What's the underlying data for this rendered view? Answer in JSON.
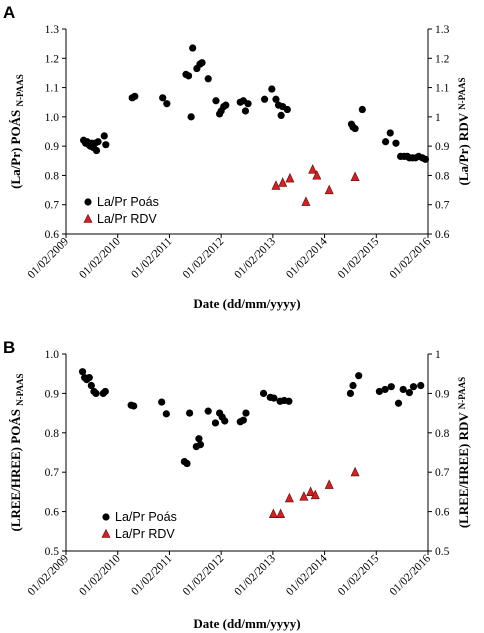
{
  "chart_data": [
    {
      "panel": "A",
      "type": "scatter",
      "xlabel": "Date (dd/mm/yyyy)",
      "ylabel_left": "(La/Pr)",
      "ylabel_left_name": "POÁS",
      "ylabel_left_sub": "N-PAAS",
      "ylabel_right": "(La/Pr)",
      "ylabel_right_name": "RDV",
      "ylabel_right_sub": "N-PAAS",
      "x_ticks": [
        "01/02/2009",
        "01/02/2010",
        "01/02/2011",
        "01/02/2012",
        "01/02/2013",
        "01/02/2014",
        "01/02/2015",
        "01/02/2016"
      ],
      "xlim": [
        2009.08,
        2016.08
      ],
      "ylim": [
        0.6,
        1.3
      ],
      "y_ticks": [
        0.6,
        0.7,
        0.8,
        0.9,
        1.0,
        1.1,
        1.2,
        1.3
      ],
      "y_ticks_left": [
        "0.6",
        "0.7",
        "0.8",
        "0.9",
        "1.0",
        "1.1",
        "1.2",
        "1.3"
      ],
      "y_ticks_right": [
        "0.6",
        "0.7",
        "0.8",
        "0.9",
        "1",
        "1.1",
        "1.2",
        "1.3"
      ],
      "legend_position": "bottom-left",
      "series": [
        {
          "name": "La/Pr Poás",
          "marker": "circle",
          "color": "#000000",
          "points": [
            [
              2009.42,
              0.92
            ],
            [
              2009.46,
              0.91
            ],
            [
              2009.49,
              0.915
            ],
            [
              2009.52,
              0.905
            ],
            [
              2009.55,
              0.9
            ],
            [
              2009.58,
              0.91
            ],
            [
              2009.61,
              0.895
            ],
            [
              2009.64,
              0.91
            ],
            [
              2009.67,
              0.885
            ],
            [
              2009.7,
              0.915
            ],
            [
              2009.82,
              0.935
            ],
            [
              2009.85,
              0.905
            ],
            [
              2010.36,
              1.065
            ],
            [
              2010.41,
              1.07
            ],
            [
              2010.95,
              1.065
            ],
            [
              2011.03,
              1.045
            ],
            [
              2011.4,
              1.145
            ],
            [
              2011.45,
              1.14
            ],
            [
              2011.5,
              1.0
            ],
            [
              2011.53,
              1.235
            ],
            [
              2011.61,
              1.165
            ],
            [
              2011.67,
              1.18
            ],
            [
              2011.71,
              1.185
            ],
            [
              2011.83,
              1.13
            ],
            [
              2011.98,
              1.055
            ],
            [
              2012.05,
              1.01
            ],
            [
              2012.08,
              1.02
            ],
            [
              2012.13,
              1.035
            ],
            [
              2012.17,
              1.04
            ],
            [
              2012.45,
              1.05
            ],
            [
              2012.51,
              1.055
            ],
            [
              2012.55,
              1.02
            ],
            [
              2012.6,
              1.045
            ],
            [
              2012.92,
              1.06
            ],
            [
              2013.06,
              1.095
            ],
            [
              2013.14,
              1.06
            ],
            [
              2013.19,
              1.04
            ],
            [
              2013.24,
              1.005
            ],
            [
              2013.27,
              1.035
            ],
            [
              2013.36,
              1.025
            ],
            [
              2014.6,
              0.975
            ],
            [
              2014.63,
              0.965
            ],
            [
              2014.67,
              0.96
            ],
            [
              2014.81,
              1.025
            ],
            [
              2015.26,
              0.915
            ],
            [
              2015.35,
              0.945
            ],
            [
              2015.46,
              0.91
            ],
            [
              2015.55,
              0.865
            ],
            [
              2015.62,
              0.865
            ],
            [
              2015.68,
              0.865
            ],
            [
              2015.72,
              0.86
            ],
            [
              2015.78,
              0.86
            ],
            [
              2015.84,
              0.86
            ],
            [
              2015.9,
              0.865
            ],
            [
              2015.97,
              0.86
            ],
            [
              2016.03,
              0.855
            ]
          ]
        },
        {
          "name": "La/Pr RDV",
          "marker": "triangle",
          "color": "#d42020",
          "points": [
            [
              2013.14,
              0.765
            ],
            [
              2013.27,
              0.775
            ],
            [
              2013.41,
              0.79
            ],
            [
              2013.72,
              0.71
            ],
            [
              2013.85,
              0.82
            ],
            [
              2013.93,
              0.8
            ],
            [
              2014.17,
              0.75
            ],
            [
              2014.67,
              0.795
            ]
          ]
        }
      ]
    },
    {
      "panel": "B",
      "type": "scatter",
      "xlabel": "Date (dd/mm/yyyy)",
      "ylabel_left": "(LREE/HREE)",
      "ylabel_left_name": "POÁS",
      "ylabel_left_sub": "N-PAAS",
      "ylabel_right": "(LREE/HREE)",
      "ylabel_right_name": "RDV",
      "ylabel_right_sub": "N-PAAS",
      "x_ticks": [
        "01/02/2009",
        "01/02/2010",
        "01/02/2011",
        "01/02/2012",
        "01/02/2013",
        "01/02/2014",
        "01/02/2015",
        "01/02/2016"
      ],
      "xlim": [
        2009.08,
        2016.08
      ],
      "ylim": [
        0.5,
        1.0
      ],
      "y_ticks": [
        0.5,
        0.6,
        0.7,
        0.8,
        0.9,
        1.0
      ],
      "y_ticks_left": [
        "0.5",
        "0.6",
        "0.7",
        "0.8",
        "0.9",
        "1.0"
      ],
      "y_ticks_right": [
        "0.5",
        "0.6",
        "0.7",
        "0.8",
        "0.9",
        "1"
      ],
      "legend_position": "bottom-left",
      "series": [
        {
          "name": "La/Pr Poás",
          "marker": "circle",
          "color": "#000000",
          "points": [
            [
              2009.4,
              0.955
            ],
            [
              2009.44,
              0.94
            ],
            [
              2009.48,
              0.935
            ],
            [
              2009.53,
              0.94
            ],
            [
              2009.57,
              0.92
            ],
            [
              2009.62,
              0.905
            ],
            [
              2009.66,
              0.9
            ],
            [
              2009.8,
              0.9
            ],
            [
              2009.84,
              0.905
            ],
            [
              2010.34,
              0.87
            ],
            [
              2010.39,
              0.868
            ],
            [
              2010.93,
              0.878
            ],
            [
              2011.02,
              0.848
            ],
            [
              2011.37,
              0.727
            ],
            [
              2011.42,
              0.722
            ],
            [
              2011.47,
              0.85
            ],
            [
              2011.6,
              0.765
            ],
            [
              2011.65,
              0.785
            ],
            [
              2011.68,
              0.77
            ],
            [
              2011.83,
              0.855
            ],
            [
              2011.97,
              0.825
            ],
            [
              2012.05,
              0.85
            ],
            [
              2012.1,
              0.84
            ],
            [
              2012.15,
              0.83
            ],
            [
              2012.45,
              0.828
            ],
            [
              2012.51,
              0.832
            ],
            [
              2012.56,
              0.85
            ],
            [
              2012.9,
              0.9
            ],
            [
              2013.03,
              0.89
            ],
            [
              2013.1,
              0.888
            ],
            [
              2013.22,
              0.88
            ],
            [
              2013.3,
              0.882
            ],
            [
              2013.39,
              0.88
            ],
            [
              2014.58,
              0.9
            ],
            [
              2014.63,
              0.92
            ],
            [
              2014.74,
              0.945
            ],
            [
              2015.14,
              0.905
            ],
            [
              2015.25,
              0.91
            ],
            [
              2015.37,
              0.917
            ],
            [
              2015.51,
              0.875
            ],
            [
              2015.6,
              0.91
            ],
            [
              2015.72,
              0.902
            ],
            [
              2015.8,
              0.917
            ],
            [
              2015.94,
              0.92
            ]
          ]
        },
        {
          "name": "La/Pr RDV",
          "marker": "triangle",
          "color": "#d42020",
          "points": [
            [
              2013.09,
              0.594
            ],
            [
              2013.23,
              0.594
            ],
            [
              2013.4,
              0.634
            ],
            [
              2013.68,
              0.638
            ],
            [
              2013.81,
              0.65
            ],
            [
              2013.9,
              0.642
            ],
            [
              2014.17,
              0.668
            ],
            [
              2014.67,
              0.7
            ]
          ]
        }
      ]
    }
  ]
}
